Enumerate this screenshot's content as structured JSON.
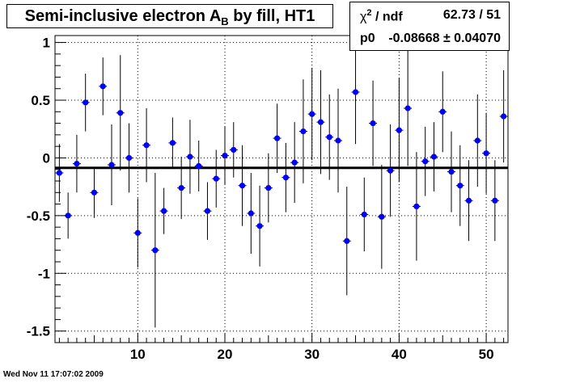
{
  "title": {
    "main": "Semi-inclusive electron A",
    "sub": "B",
    "tail": " by fill, HT1"
  },
  "stats": {
    "chi2_label_sym": "χ",
    "chi2_label_sup": "2",
    "chi2_label_rest": " / ndf",
    "chi2_value": "62.73 / 51",
    "p0_label": "p0",
    "p0_value": "-0.08668 ± 0.04070"
  },
  "footer": "Wed Nov 11 17:07:02 2009",
  "colors": {
    "marker": "#0000ff",
    "axis": "#000000",
    "grid": "#000000",
    "fit_line": "#000000"
  },
  "chart_data": {
    "type": "scatter",
    "title": "Semi-inclusive electron A_B by fill, HT1",
    "xlabel": "",
    "ylabel": "",
    "xlim": [
      0.5,
      52.5
    ],
    "ylim": [
      -1.6,
      1.06
    ],
    "x_ticks": [
      10,
      20,
      30,
      40,
      50
    ],
    "y_ticks": [
      -1.5,
      -1,
      -0.5,
      0,
      0.5,
      1
    ],
    "y_tick_labels": [
      "-1.5",
      "-1",
      "-0.5",
      "0",
      "0.5",
      "1"
    ],
    "x_tick_labels": [
      "10",
      "20",
      "30",
      "40",
      "50"
    ],
    "grid": true,
    "fit": {
      "type": "constant",
      "p0": -0.08668,
      "p0_err": 0.0407
    },
    "series": [
      {
        "x": [
          1,
          2,
          3,
          4,
          5,
          6,
          7,
          8,
          9,
          10,
          11,
          12,
          13,
          14,
          15,
          16,
          17,
          18,
          19,
          20,
          21,
          22,
          23,
          24,
          25,
          26,
          27,
          28,
          29,
          30,
          31,
          32,
          33,
          34,
          35,
          36,
          37,
          38,
          39,
          40,
          41,
          42,
          43,
          44,
          45,
          46,
          47,
          48,
          49,
          50,
          51,
          52
        ],
        "y": [
          -0.13,
          -0.5,
          -0.05,
          0.48,
          -0.3,
          0.62,
          -0.06,
          0.39,
          0.0,
          -0.65,
          0.11,
          -0.8,
          -0.46,
          0.13,
          -0.26,
          0.01,
          -0.07,
          -0.46,
          -0.18,
          0.02,
          0.07,
          -0.24,
          -0.48,
          -0.59,
          -0.26,
          0.17,
          -0.17,
          -0.04,
          0.23,
          0.38,
          0.31,
          0.18,
          0.15,
          -0.72,
          0.57,
          -0.49,
          0.3,
          -0.51,
          -0.11,
          0.24,
          0.43,
          -0.42,
          -0.03,
          0.01,
          0.4,
          -0.12,
          -0.24,
          -0.37,
          0.15,
          0.04,
          -0.37,
          0.36
        ],
        "yerr": [
          0.25,
          0.2,
          0.25,
          0.25,
          0.22,
          0.25,
          0.35,
          0.5,
          0.3,
          0.3,
          0.32,
          0.67,
          0.2,
          0.22,
          0.27,
          0.32,
          0.22,
          0.25,
          0.25,
          0.25,
          0.24,
          0.35,
          0.35,
          0.35,
          0.3,
          0.3,
          0.3,
          0.35,
          0.45,
          0.4,
          0.45,
          0.37,
          0.45,
          0.47,
          0.45,
          0.32,
          0.37,
          0.45,
          0.4,
          0.45,
          0.5,
          0.47,
          0.3,
          0.3,
          0.35,
          0.35,
          0.35,
          0.35,
          0.4,
          0.35,
          0.35,
          0.4
        ]
      }
    ]
  }
}
